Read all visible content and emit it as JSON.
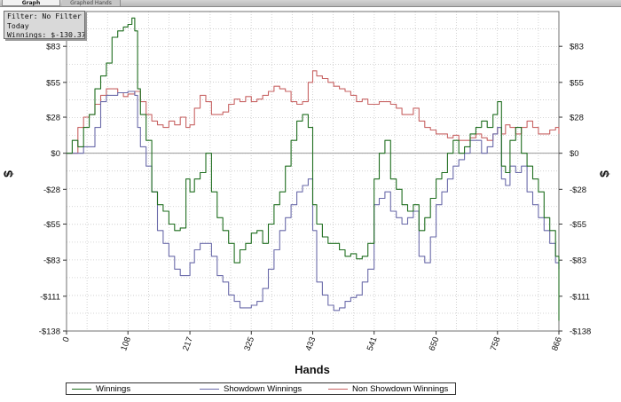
{
  "tabs": [
    {
      "label": "Graph",
      "active": true
    },
    {
      "label": "Graphed Hands",
      "active": false
    }
  ],
  "filter": {
    "line1": "Filter: No Filter",
    "line2": "Today",
    "line3": "Winnings: $-130.37"
  },
  "chart_data": {
    "type": "line",
    "xlabel": "Hands",
    "ylabel": "$",
    "xlim": [
      0,
      866
    ],
    "ylim": [
      -138,
      110
    ],
    "x_ticks": [
      0,
      108,
      217,
      325,
      433,
      541,
      650,
      758,
      866
    ],
    "y_ticks": [
      83,
      55,
      28,
      0,
      -28,
      -55,
      -83,
      -111,
      -138
    ],
    "y_tick_labels": [
      "$83",
      "$55",
      "$28",
      "$0",
      "-$28",
      "-$55",
      "-$83",
      "-$111",
      "-$138"
    ],
    "grid": true,
    "legend_position": "bottom",
    "series": [
      {
        "name": "Winnings",
        "color": "#1f6e1f",
        "x": [
          0,
          10,
          20,
          30,
          40,
          50,
          60,
          70,
          80,
          90,
          100,
          108,
          115,
          120,
          125,
          130,
          140,
          150,
          160,
          170,
          180,
          190,
          200,
          210,
          217,
          225,
          235,
          245,
          255,
          265,
          275,
          285,
          295,
          305,
          315,
          325,
          335,
          345,
          355,
          365,
          375,
          385,
          395,
          405,
          415,
          425,
          433,
          440,
          450,
          460,
          470,
          480,
          490,
          500,
          510,
          520,
          530,
          541,
          550,
          560,
          570,
          580,
          590,
          600,
          610,
          620,
          630,
          640,
          650,
          660,
          670,
          680,
          690,
          700,
          710,
          720,
          730,
          740,
          750,
          758,
          765,
          772,
          780,
          790,
          800,
          810,
          820,
          830,
          840,
          850,
          860,
          866
        ],
        "y": [
          0,
          10,
          5,
          20,
          30,
          50,
          60,
          70,
          90,
          95,
          98,
          100,
          105,
          95,
          50,
          30,
          10,
          -30,
          -40,
          -45,
          -55,
          -60,
          -58,
          -20,
          -30,
          -20,
          -15,
          0,
          -30,
          -50,
          -60,
          -70,
          -85,
          -75,
          -70,
          -62,
          -60,
          -70,
          -55,
          -40,
          -30,
          -10,
          10,
          25,
          30,
          20,
          -40,
          -55,
          -65,
          -70,
          -70,
          -75,
          -80,
          -78,
          -82,
          -80,
          -70,
          -20,
          0,
          10,
          -20,
          -28,
          -40,
          -45,
          -40,
          -60,
          -50,
          -35,
          -20,
          -15,
          0,
          10,
          0,
          5,
          15,
          20,
          25,
          20,
          30,
          40,
          -10,
          -15,
          10,
          20,
          0,
          -10,
          -20,
          -30,
          -50,
          -60,
          -80,
          -130
        ]
      },
      {
        "name": "Showdown Winnings",
        "color": "#6b6baa",
        "x": [
          0,
          30,
          50,
          60,
          70,
          80,
          90,
          100,
          108,
          120,
          125,
          130,
          140,
          150,
          160,
          170,
          180,
          190,
          200,
          210,
          217,
          225,
          235,
          245,
          255,
          265,
          275,
          285,
          295,
          305,
          315,
          325,
          335,
          345,
          355,
          365,
          375,
          385,
          395,
          405,
          415,
          425,
          433,
          440,
          450,
          460,
          470,
          480,
          490,
          500,
          510,
          520,
          530,
          541,
          550,
          560,
          570,
          580,
          590,
          600,
          610,
          620,
          630,
          640,
          650,
          660,
          670,
          680,
          690,
          700,
          710,
          720,
          730,
          740,
          750,
          758,
          765,
          772,
          780,
          790,
          800,
          810,
          820,
          830,
          840,
          850,
          860,
          866
        ],
        "y": [
          0,
          5,
          20,
          40,
          45,
          45,
          47,
          47,
          48,
          45,
          20,
          5,
          -10,
          -30,
          -60,
          -70,
          -80,
          -90,
          -95,
          -95,
          -85,
          -75,
          -70,
          -70,
          -80,
          -95,
          -100,
          -110,
          -115,
          -120,
          -120,
          -118,
          -115,
          -105,
          -90,
          -75,
          -60,
          -50,
          -40,
          -30,
          -25,
          -20,
          -60,
          -100,
          -110,
          -118,
          -122,
          -120,
          -115,
          -112,
          -110,
          -100,
          -90,
          -40,
          -35,
          -30,
          -45,
          -50,
          -55,
          -50,
          -45,
          -80,
          -85,
          -65,
          -40,
          -30,
          -20,
          -10,
          -5,
          0,
          10,
          10,
          0,
          5,
          15,
          20,
          -20,
          -25,
          -10,
          -15,
          -10,
          -30,
          -40,
          -50,
          -60,
          -70,
          -85,
          -90
        ]
      },
      {
        "name": "Non Showdown Winnings",
        "color": "#c86464",
        "x": [
          0,
          10,
          20,
          30,
          40,
          50,
          60,
          70,
          80,
          90,
          100,
          108,
          120,
          130,
          140,
          150,
          160,
          170,
          180,
          190,
          200,
          210,
          217,
          225,
          235,
          245,
          255,
          265,
          275,
          285,
          295,
          305,
          315,
          325,
          335,
          345,
          355,
          365,
          375,
          385,
          395,
          405,
          415,
          425,
          433,
          440,
          450,
          460,
          470,
          480,
          490,
          500,
          510,
          520,
          530,
          541,
          550,
          560,
          570,
          580,
          590,
          600,
          610,
          620,
          630,
          640,
          650,
          660,
          670,
          680,
          690,
          700,
          710,
          720,
          730,
          740,
          750,
          758,
          765,
          772,
          780,
          790,
          800,
          810,
          820,
          830,
          840,
          850,
          860,
          866
        ],
        "y": [
          0,
          0,
          20,
          28,
          30,
          38,
          45,
          50,
          50,
          47,
          44,
          46,
          48,
          40,
          30,
          25,
          22,
          20,
          25,
          22,
          28,
          20,
          22,
          35,
          45,
          40,
          30,
          30,
          32,
          38,
          42,
          40,
          44,
          40,
          42,
          45,
          48,
          52,
          50,
          48,
          40,
          38,
          40,
          55,
          64,
          60,
          58,
          55,
          52,
          50,
          48,
          45,
          40,
          42,
          38,
          38,
          40,
          40,
          38,
          35,
          30,
          30,
          35,
          25,
          20,
          18,
          15,
          15,
          12,
          14,
          10,
          10,
          12,
          15,
          12,
          10,
          15,
          20,
          15,
          22,
          20,
          15,
          20,
          25,
          20,
          15,
          15,
          18,
          20,
          15
        ]
      }
    ]
  }
}
